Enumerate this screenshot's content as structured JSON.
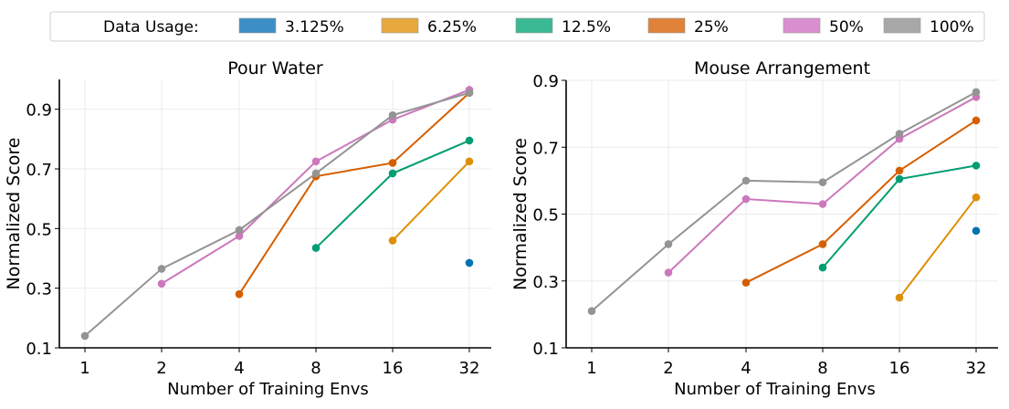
{
  "legend": {
    "title": "Data Usage:",
    "entries": [
      {
        "label": "3.125%",
        "color": "#3c8fc6"
      },
      {
        "label": "6.25%",
        "color": "#e7a93e"
      },
      {
        "label": "12.5%",
        "color": "#3bb894"
      },
      {
        "label": "25%",
        "color": "#e0823a"
      },
      {
        "label": "50%",
        "color": "#d98fcf"
      },
      {
        "label": "100%",
        "color": "#a8a8a8"
      }
    ]
  },
  "chart_data": [
    {
      "type": "line",
      "title": "Pour Water",
      "xlabel": "Number of Training Envs",
      "ylabel": "Normalized Score",
      "x": [
        1,
        2,
        4,
        8,
        16,
        32
      ],
      "x_scale": "log2",
      "ylim": [
        0.1,
        1.0
      ],
      "yticks": [
        "0.1",
        "0.3",
        "0.5",
        "0.7",
        "0.9"
      ],
      "grid": true,
      "series": [
        {
          "name": "3.125%",
          "color": "#0173b2",
          "values": [
            null,
            null,
            null,
            null,
            null,
            0.385
          ]
        },
        {
          "name": "6.25%",
          "color": "#de8f05",
          "values": [
            null,
            null,
            null,
            null,
            0.46,
            0.725
          ]
        },
        {
          "name": "12.5%",
          "color": "#029e73",
          "values": [
            null,
            null,
            null,
            0.435,
            0.685,
            0.795
          ]
        },
        {
          "name": "25%",
          "color": "#d55e00",
          "values": [
            null,
            null,
            0.28,
            0.675,
            0.72,
            0.955
          ]
        },
        {
          "name": "50%",
          "color": "#cc78bc",
          "values": [
            null,
            0.315,
            0.475,
            0.725,
            0.865,
            0.965
          ]
        },
        {
          "name": "100%",
          "color": "#949494",
          "values": [
            0.14,
            0.365,
            0.495,
            0.685,
            0.88,
            0.955
          ]
        }
      ]
    },
    {
      "type": "line",
      "title": "Mouse Arrangement",
      "xlabel": "Number of Training Envs",
      "ylabel": "Normalized Score",
      "x": [
        1,
        2,
        4,
        8,
        16,
        32
      ],
      "x_scale": "log2",
      "ylim": [
        0.1,
        0.9
      ],
      "yticks": [
        "0.1",
        "0.3",
        "0.5",
        "0.7",
        "0.9"
      ],
      "grid": true,
      "series": [
        {
          "name": "3.125%",
          "color": "#0173b2",
          "values": [
            null,
            null,
            null,
            null,
            null,
            0.45
          ]
        },
        {
          "name": "6.25%",
          "color": "#de8f05",
          "values": [
            null,
            null,
            null,
            null,
            0.25,
            0.55
          ]
        },
        {
          "name": "12.5%",
          "color": "#029e73",
          "values": [
            null,
            null,
            null,
            0.34,
            0.605,
            0.645
          ]
        },
        {
          "name": "25%",
          "color": "#d55e00",
          "values": [
            null,
            null,
            0.295,
            0.41,
            0.63,
            0.78
          ]
        },
        {
          "name": "50%",
          "color": "#cc78bc",
          "values": [
            null,
            0.325,
            0.545,
            0.53,
            0.725,
            0.85
          ]
        },
        {
          "name": "100%",
          "color": "#949494",
          "values": [
            0.21,
            0.41,
            0.6,
            0.595,
            0.74,
            0.865
          ]
        }
      ]
    }
  ]
}
